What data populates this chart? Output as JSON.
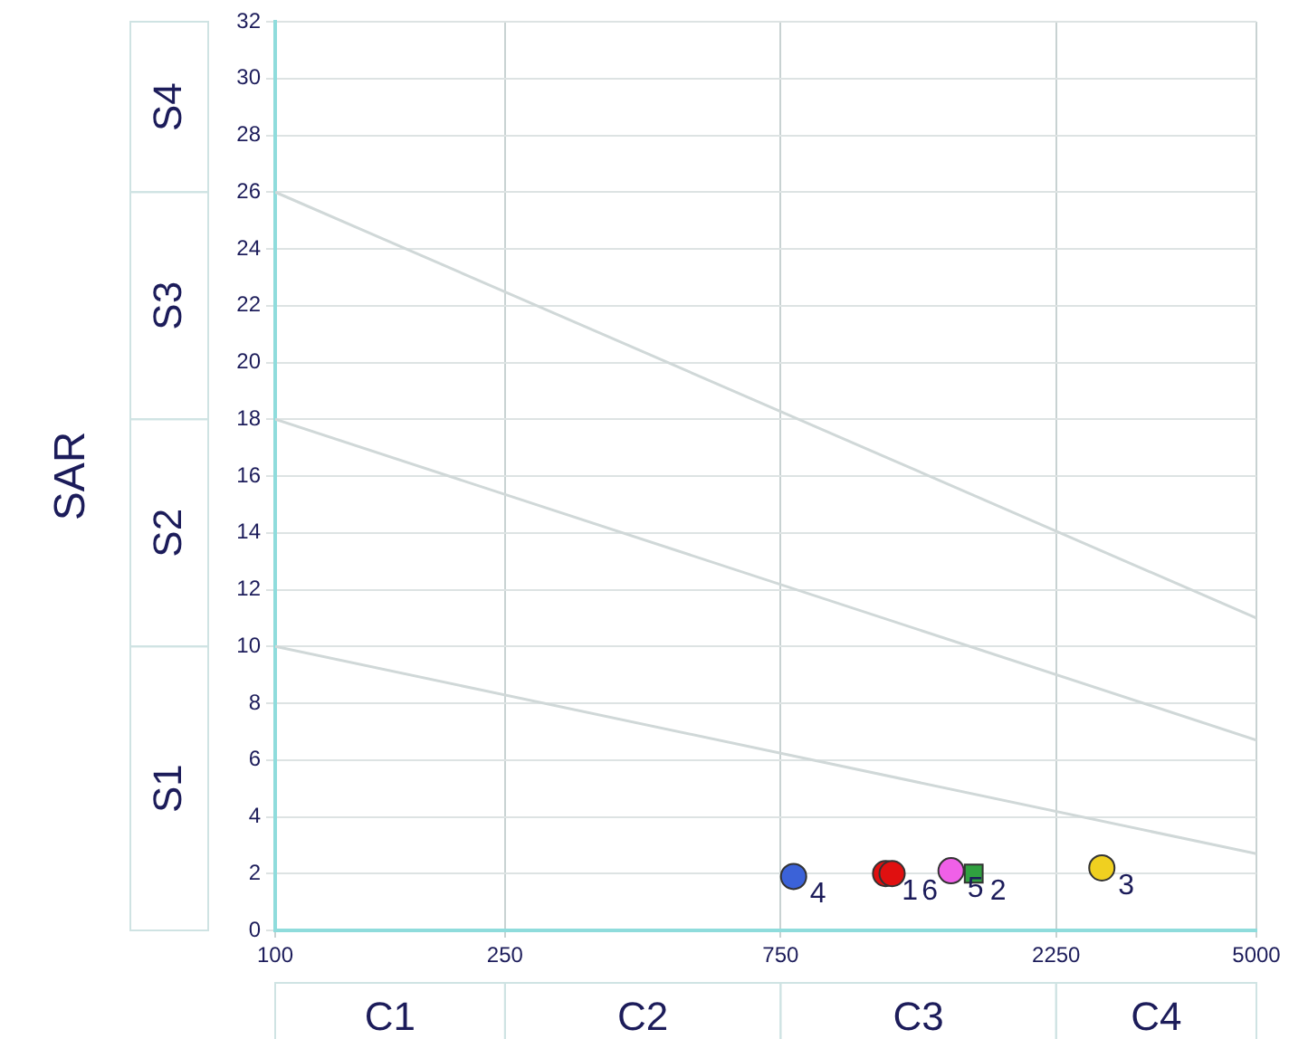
{
  "chart_data": {
    "type": "scatter",
    "ylabel": "SAR",
    "xlim": [
      100,
      5000
    ],
    "ylim": [
      0,
      32
    ],
    "xticks": [
      100,
      250,
      750,
      2250,
      5000
    ],
    "yticks": [
      0,
      2,
      4,
      6,
      8,
      10,
      12,
      14,
      16,
      18,
      20,
      22,
      24,
      26,
      28,
      30,
      32
    ],
    "log": "x",
    "grid": true,
    "legend": false,
    "annotations": [
      "S1",
      "S2",
      "S3",
      "S4",
      "C1",
      "C2",
      "C3",
      "C4"
    ],
    "series": [
      {
        "type": "line",
        "x": [
          100,
          5000
        ],
        "values": [
          10,
          2.7
        ],
        "color": "#d0d8d8",
        "marker": "none"
      },
      {
        "type": "line",
        "x": [
          100,
          5000
        ],
        "values": [
          18,
          6.7
        ],
        "color": "#d0d8d8",
        "marker": "none"
      },
      {
        "type": "line",
        "x": [
          100,
          5000
        ],
        "values": [
          26,
          11
        ],
        "color": "#d0d8d8",
        "marker": "none"
      },
      {
        "name": "4",
        "x": [
          790
        ],
        "values": [
          1.9
        ],
        "color": "#3b62d8",
        "marker": "circle"
      },
      {
        "name": "1",
        "x": [
          1140
        ],
        "values": [
          2.0
        ],
        "color": "#e01010",
        "marker": "circle"
      },
      {
        "name": "6",
        "x": [
          1170
        ],
        "values": [
          2.0
        ],
        "color": "#e01010",
        "marker": "circle"
      },
      {
        "name": "5",
        "x": [
          1480
        ],
        "values": [
          2.1
        ],
        "color": "#f060e8",
        "marker": "circle"
      },
      {
        "name": "2",
        "x": [
          1620
        ],
        "values": [
          2.0
        ],
        "color": "#30a040",
        "marker": "square"
      },
      {
        "name": "3",
        "x": [
          2700
        ],
        "values": [
          2.2
        ],
        "color": "#f0d020",
        "marker": "circle"
      }
    ]
  }
}
